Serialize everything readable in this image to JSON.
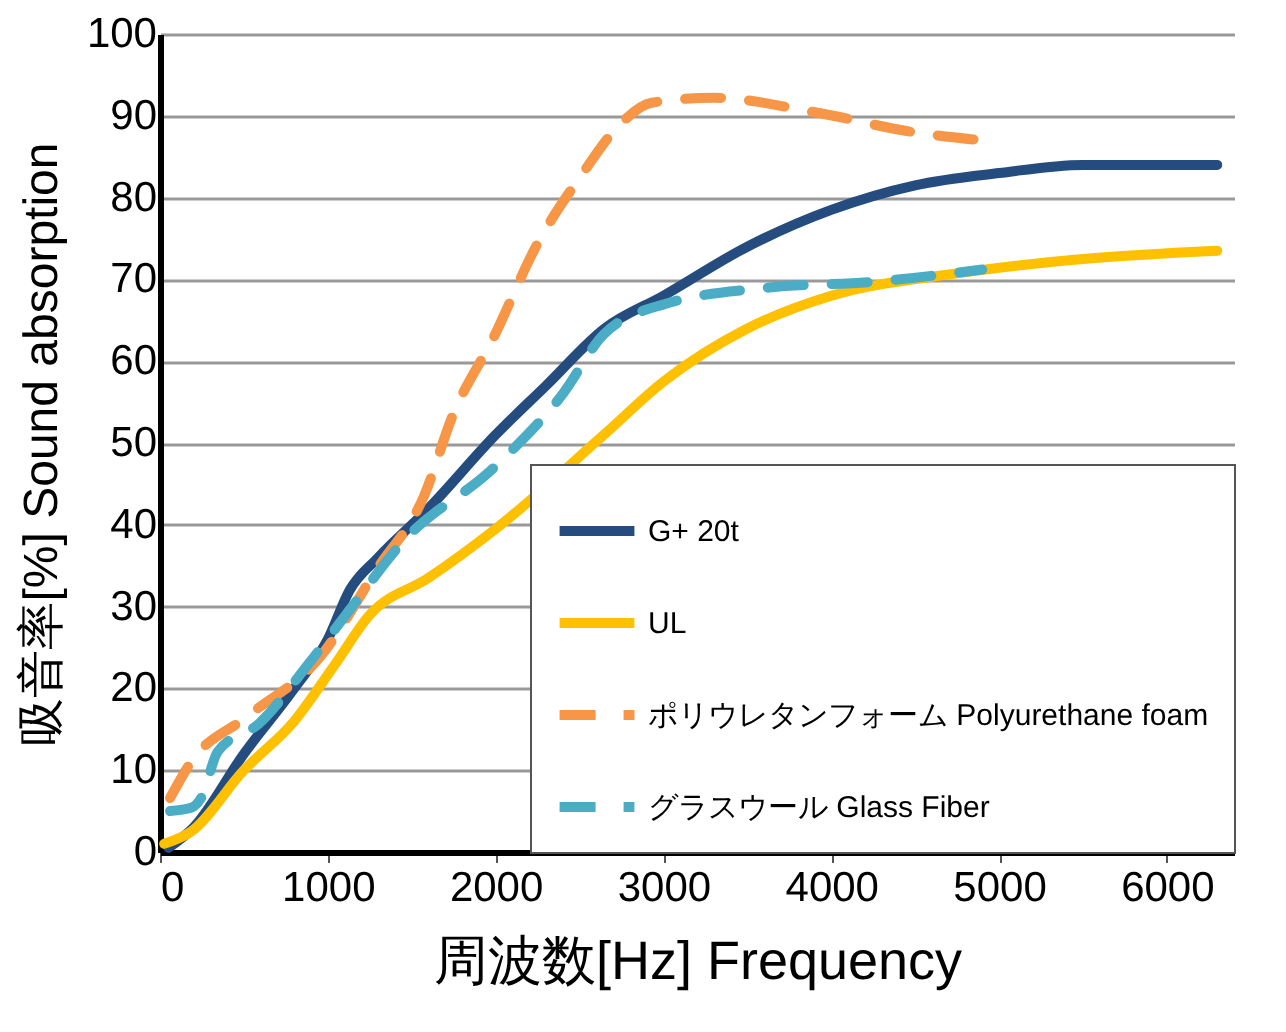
{
  "chart_data": {
    "type": "line",
    "xlabel": "周波数[Hz]     Frequency",
    "ylabel": "吸音率[%]   Sound absorption",
    "xlim": [
      0,
      6400
    ],
    "xticks": [
      0,
      1000,
      2000,
      3000,
      4000,
      5000,
      6000
    ],
    "ylim": [
      0,
      100
    ],
    "yticks": [
      0,
      10,
      20,
      30,
      40,
      50,
      60,
      70,
      80,
      90,
      100
    ],
    "grid": "y",
    "legend": "bottom right",
    "marker": "none",
    "series": [
      {
        "name": "G+ 20t",
        "color": "#244c7e",
        "line_style": "solid",
        "x": [
          50,
          200,
          500,
          800,
          1000,
          1130,
          1300,
          1600,
          2000,
          2300,
          2650,
          3000,
          3500,
          4000,
          4500,
          5000,
          5500,
          6300
        ],
        "values": [
          0.5,
          3,
          12,
          20,
          26,
          32,
          36,
          42,
          51,
          57,
          64,
          68,
          74,
          78.5,
          81.5,
          83,
          84,
          84
        ]
      },
      {
        "name": "UL",
        "color": "#ffc000",
        "line_style": "solid",
        "x": [
          25,
          185,
          500,
          800,
          1045,
          1250,
          1600,
          2000,
          2645,
          3000,
          3500,
          4000,
          4735,
          5500,
          6300
        ],
        "values": [
          1,
          2.5,
          10,
          16,
          23,
          29,
          33.5,
          39.5,
          51,
          57.5,
          64,
          68,
          70.7,
          72.5,
          73.5
        ]
      },
      {
        "name": "ポリウレタンフォーム Polyurethane foam",
        "color": "#f79646",
        "line_style": "dashed",
        "x": [
          60,
          185,
          515,
          960,
          1290,
          1575,
          1745,
          1990,
          2240,
          2520,
          2730,
          2930,
          3300,
          3910,
          4490,
          4900
        ],
        "values": [
          6.6,
          11,
          16.5,
          24,
          34.5,
          43.6,
          53.4,
          63,
          74,
          83,
          88.7,
          91.6,
          92.2,
          90.4,
          88,
          87
        ]
      },
      {
        "name": "グラスウール Glass Fiber",
        "color": "#4bacc6",
        "line_style": "dashed",
        "x": [
          60,
          185,
          245,
          345,
          590,
          885,
          1130,
          1450,
          1990,
          2400,
          2645,
          3010,
          3630,
          4245,
          4900
        ],
        "values": [
          5,
          5.4,
          6.6,
          12.3,
          15.7,
          23,
          29.6,
          38,
          47,
          56,
          63.3,
          67,
          69,
          69.7,
          71.2
        ]
      }
    ]
  }
}
